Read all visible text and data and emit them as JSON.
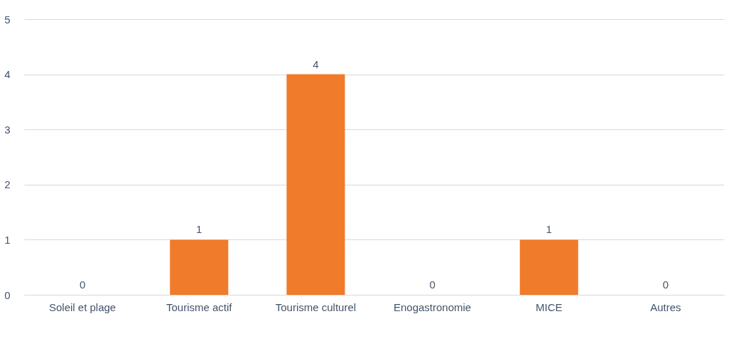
{
  "chart_data": {
    "type": "bar",
    "categories": [
      "Soleil et plage",
      "Tourisme actif",
      "Tourisme culturel",
      "Enogastronomie",
      "MICE",
      "Autres"
    ],
    "values": [
      0,
      1,
      4,
      0,
      1,
      0
    ],
    "color": "#f07b2a",
    "ylim": [
      0,
      5
    ],
    "yticks": [
      0,
      1,
      2,
      3,
      4,
      5
    ],
    "grid": "y",
    "data_labels": true
  }
}
